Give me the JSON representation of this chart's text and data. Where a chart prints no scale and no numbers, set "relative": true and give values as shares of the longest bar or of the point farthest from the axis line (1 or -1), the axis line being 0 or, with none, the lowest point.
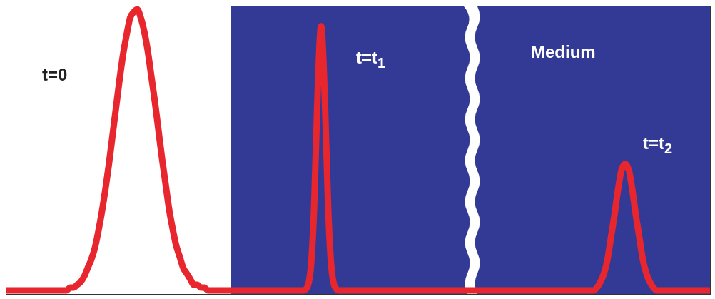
{
  "chart_data": {
    "type": "line",
    "relative": true,
    "color": "#e8262e",
    "annotations": [
      "t=0",
      "t=t$_{1}$",
      "Medium",
      "t=t$_{2}$"
    ],
    "categories": [
      null,
      null,
      null,
      null,
      null,
      null,
      null,
      null,
      null,
      null,
      null,
      null,
      null,
      null,
      null,
      null,
      null,
      null,
      null,
      null,
      null,
      null,
      null,
      null,
      null,
      null,
      null,
      null,
      null,
      null,
      null,
      null,
      null,
      null,
      null,
      null,
      null,
      null,
      null,
      null,
      null,
      null,
      null,
      null,
      null,
      null,
      null,
      null,
      null,
      null,
      null,
      null,
      null,
      null,
      null,
      null,
      null,
      null,
      null,
      null,
      null,
      null,
      null,
      null,
      null,
      null,
      null,
      null,
      null,
      null,
      null,
      null,
      null,
      null,
      null,
      null,
      null,
      null,
      null,
      null,
      null,
      null,
      null,
      null,
      null,
      null,
      null,
      null,
      null,
      null,
      null,
      null,
      null,
      null,
      null,
      null,
      null,
      null,
      null,
      null,
      null,
      null,
      null,
      null,
      null,
      null,
      null,
      null,
      null,
      null,
      null,
      null,
      null,
      null,
      null,
      null,
      null,
      null,
      null,
      null,
      null,
      null,
      null,
      null,
      null,
      null,
      null,
      null,
      null,
      null,
      null,
      null,
      null,
      null,
      null,
      null,
      null,
      null,
      null,
      null,
      null,
      null,
      null,
      null,
      null,
      null,
      null,
      null,
      null,
      null,
      null,
      null,
      null,
      null,
      null,
      null,
      null,
      null,
      null,
      null,
      null,
      null,
      null,
      null,
      null,
      null,
      null,
      null,
      null,
      null,
      null,
      null,
      null,
      null,
      null,
      null,
      null,
      null,
      null,
      null,
      null,
      null,
      null,
      null,
      null,
      null,
      null,
      null,
      null,
      null,
      null,
      null,
      null,
      null,
      null,
      null,
      null,
      null,
      null,
      null
    ],
    "values": [
      0,
      0,
      0,
      0,
      0,
      0,
      0,
      0,
      0,
      0,
      0,
      0,
      0,
      0,
      0,
      0,
      0,
      0,
      0.01,
      0.01,
      0.02,
      0.03,
      0.05,
      0.08,
      0.11,
      0.15,
      0.21,
      0.28,
      0.36,
      0.45,
      0.55,
      0.65,
      0.75,
      0.84,
      0.91,
      0.97,
      0.99,
      1,
      0.97,
      0.92,
      0.85,
      0.76,
      0.67,
      0.57,
      0.47,
      0.38,
      0.29,
      0.22,
      0.16,
      0.12,
      0.08,
      0.06,
      0.04,
      0.02,
      0.02,
      0.01,
      0.01,
      0,
      0,
      0,
      0,
      0,
      0,
      0,
      0,
      0,
      0,
      0,
      0,
      0,
      0,
      0,
      0,
      0,
      0,
      0,
      0,
      0,
      0,
      0,
      0,
      0,
      0,
      0,
      0,
      0.01,
      0.07,
      0.29,
      0.7,
      0.94,
      0.7,
      0.29,
      0.07,
      0.01,
      0,
      0,
      0,
      0,
      0,
      0,
      0,
      0,
      0,
      0,
      0,
      0,
      0,
      0,
      0,
      0,
      0,
      0,
      0,
      0,
      0,
      0,
      0,
      0,
      0,
      0,
      0,
      0,
      0,
      0,
      0,
      0,
      0,
      0,
      0,
      0,
      0,
      0,
      0,
      0,
      0,
      0,
      0,
      0,
      0,
      0,
      0,
      0,
      0,
      0,
      0,
      0,
      0,
      0,
      0,
      0,
      0,
      0,
      0,
      0,
      0,
      0,
      0,
      0,
      0,
      0,
      0,
      0,
      0,
      0,
      0,
      0,
      0,
      0.01,
      0.03,
      0.06,
      0.11,
      0.19,
      0.27,
      0.36,
      0.43,
      0.45,
      0.43,
      0.36,
      0.27,
      0.19,
      0.11,
      0.06,
      0.03,
      0.01,
      0,
      0,
      0,
      0,
      0,
      0,
      0,
      0,
      0,
      0,
      0,
      0,
      0,
      0,
      0,
      0
    ]
  }
}
